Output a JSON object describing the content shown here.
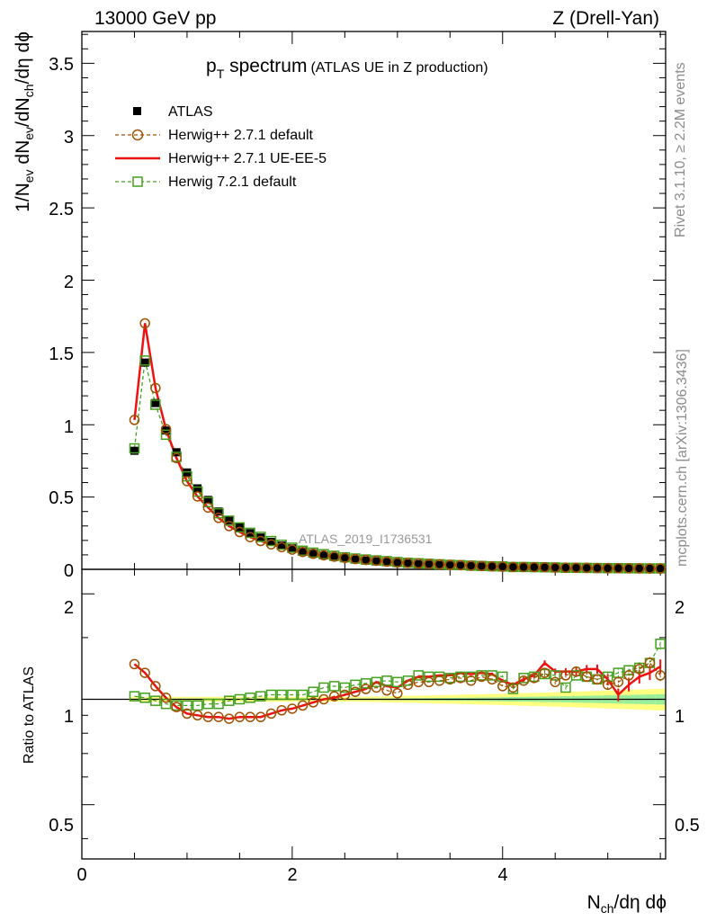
{
  "header": {
    "energy_label": "13000 GeV pp",
    "process_label": "Z (Drell-Yan)"
  },
  "plot_title": {
    "main": "p",
    "main_sub": "T",
    "main_rest": " spectrum",
    "paren": "(ATLAS UE in Z production)"
  },
  "watermark": "ATLAS_2019_I1736531",
  "side_labels": {
    "rivet": "Rivet 3.1.10, ≥ 2.2M events",
    "mcplots": "mcplots.cern.ch [arXiv:1306.3436]"
  },
  "axes": {
    "y_main": {
      "p1": "1/N",
      "s1": "ev",
      "p2": " dN",
      "s2": "ev",
      "p3": "/dN",
      "s3": "ch",
      "p4": "/dη dϕ"
    },
    "y_ratio": "Ratio to ATLAS",
    "x": {
      "p1": "N",
      "s1": "ch",
      "p2": "/dη dϕ"
    },
    "main_yticks": [
      "0",
      "0.5",
      "1",
      "1.5",
      "2",
      "2.5",
      "3",
      "3.5"
    ],
    "ratio_yticks": [
      "0.5",
      "1",
      "2"
    ],
    "xticks": [
      "0",
      "2",
      "4"
    ]
  },
  "legend": [
    {
      "label": "ATLAS",
      "color": "#000000"
    },
    {
      "label": "Herwig++ 2.7.1 default",
      "color": "#a05000"
    },
    {
      "label": "Herwig++ 2.7.1 UE-EE-5",
      "color": "#ee1111"
    },
    {
      "label": "Herwig 7.2.1 default",
      "color": "#44a01e"
    }
  ],
  "chart_data": {
    "type": "line",
    "title": "pT spectrum (ATLAS UE in Z production)",
    "xlabel": "Nch/dη dϕ",
    "ylabel": "1/Nev dNev/dNch/dη dϕ",
    "xlim": [
      0,
      5.55
    ],
    "ylim": [
      0,
      3.72
    ],
    "ratio_ylim": [
      0.35,
      2.35
    ],
    "x": [
      0.5,
      0.6,
      0.7,
      0.8,
      0.9,
      1.0,
      1.1,
      1.2,
      1.3,
      1.4,
      1.5,
      1.6,
      1.7,
      1.8,
      1.9,
      2.0,
      2.1,
      2.2,
      2.3,
      2.4,
      2.5,
      2.6,
      2.7,
      2.8,
      2.9,
      3.0,
      3.1,
      3.2,
      3.3,
      3.4,
      3.5,
      3.6,
      3.7,
      3.8,
      3.9,
      4.0,
      4.1,
      4.2,
      4.3,
      4.4,
      4.5,
      4.6,
      4.7,
      4.8,
      4.9,
      5.0,
      5.1,
      5.2,
      5.3,
      5.4,
      5.5
    ],
    "series": [
      {
        "name": "ATLAS",
        "values": [
          0.82,
          1.43,
          1.15,
          0.96,
          0.81,
          0.67,
          0.56,
          0.48,
          0.4,
          0.34,
          0.29,
          0.25,
          0.22,
          0.19,
          0.165,
          0.145,
          0.125,
          0.11,
          0.097,
          0.086,
          0.077,
          0.068,
          0.061,
          0.055,
          0.05,
          0.045,
          0.04,
          0.036,
          0.033,
          0.03,
          0.027,
          0.025,
          0.022,
          0.02,
          0.018,
          0.017,
          0.015,
          0.014,
          0.013,
          0.012,
          0.011,
          0.01,
          0.009,
          0.0085,
          0.0078,
          0.0072,
          0.0066,
          0.006,
          0.0055,
          0.005,
          0.0046
        ]
      },
      {
        "name": "Herwig++ 2.7.1 default",
        "ratio": [
          1.26,
          1.19,
          1.09,
          1.01,
          0.95,
          0.91,
          0.9,
          0.89,
          0.89,
          0.88,
          0.89,
          0.89,
          0.89,
          0.91,
          0.93,
          0.94,
          0.96,
          0.98,
          1.0,
          1.02,
          1.03,
          1.05,
          1.07,
          1.08,
          1.06,
          1.04,
          1.1,
          1.12,
          1.12,
          1.13,
          1.14,
          1.15,
          1.13,
          1.16,
          1.14,
          1.09,
          1.08,
          1.13,
          1.15,
          1.19,
          1.12,
          1.17,
          1.2,
          1.16,
          1.14,
          1.1,
          1.12,
          1.17,
          1.22,
          1.27,
          1.17
        ]
      },
      {
        "name": "Herwig++ 2.7.1 UE-EE-5",
        "ratio": [
          1.26,
          1.19,
          1.09,
          1.01,
          0.95,
          0.91,
          0.9,
          0.89,
          0.89,
          0.88,
          0.89,
          0.89,
          0.89,
          0.91,
          0.93,
          0.94,
          0.96,
          0.98,
          1.0,
          1.01,
          1.03,
          1.05,
          1.07,
          1.12,
          1.09,
          1.08,
          1.13,
          1.16,
          1.16,
          1.17,
          1.17,
          1.19,
          1.18,
          1.19,
          1.18,
          1.13,
          1.1,
          1.14,
          1.17,
          1.27,
          1.2,
          1.2,
          1.2,
          1.22,
          1.22,
          1.14,
          1.03,
          1.1,
          1.16,
          1.19,
          1.24
        ]
      },
      {
        "name": "Herwig 7.2.1 default",
        "ratio": [
          1.02,
          1.01,
          0.99,
          0.97,
          0.96,
          0.96,
          0.96,
          0.97,
          0.97,
          0.99,
          1.0,
          1.01,
          1.02,
          1.03,
          1.03,
          1.03,
          1.03,
          1.05,
          1.08,
          1.09,
          1.08,
          1.1,
          1.11,
          1.12,
          1.13,
          1.12,
          1.13,
          1.17,
          1.16,
          1.16,
          1.15,
          1.16,
          1.16,
          1.17,
          1.17,
          1.16,
          1.07,
          1.15,
          1.16,
          1.18,
          1.17,
          1.08,
          1.17,
          1.16,
          1.14,
          1.16,
          1.19,
          1.21,
          1.23,
          1.27,
          1.44
        ]
      }
    ]
  }
}
